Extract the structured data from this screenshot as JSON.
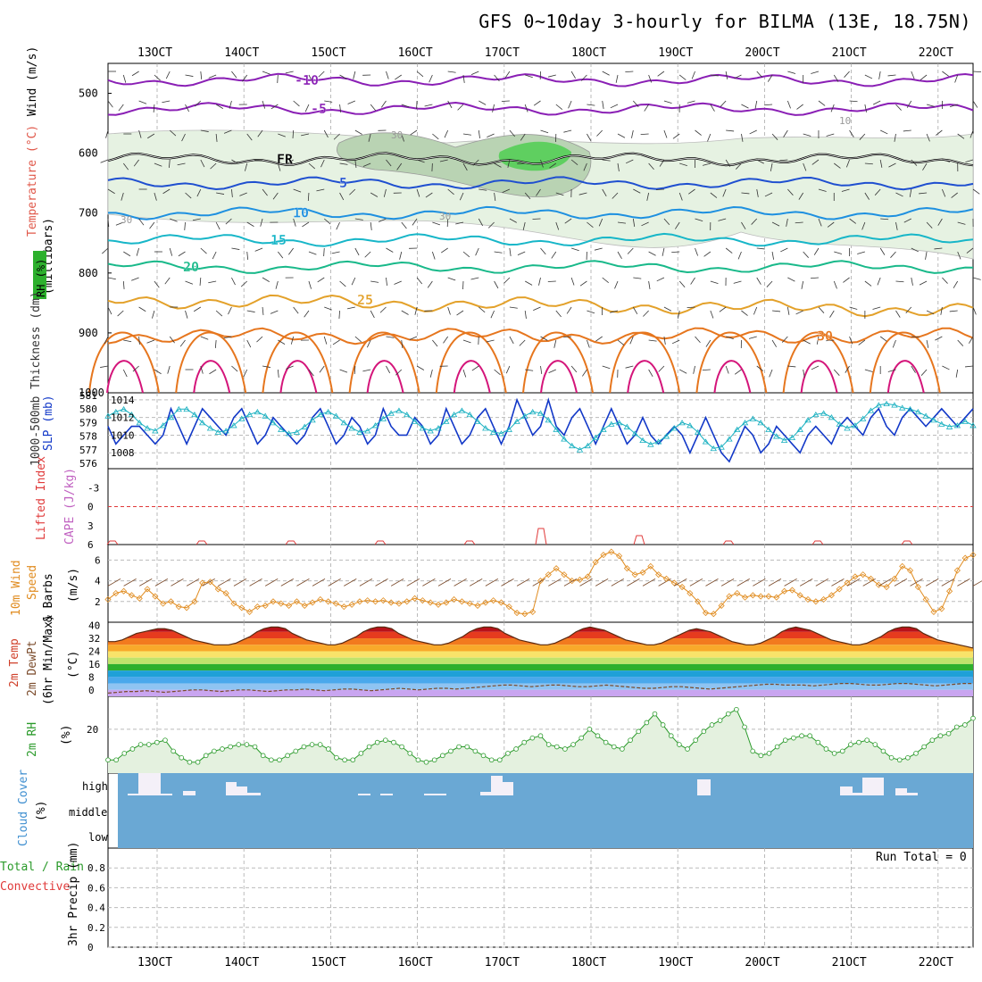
{
  "title": "GFS 0~10day 3-hourly for BILMA (13E, 18.75N)",
  "colors": {
    "t_neg10": "#8a1fb5",
    "t_neg5": "#8a1fb5",
    "t_fr": "#000000",
    "t_5": "#1f4fd0",
    "t_10": "#1e90e0",
    "t_15": "#17b6c8",
    "t_20": "#19b98a",
    "t_25": "#e3a12a",
    "t_30": "#e6761e",
    "t_35": "#d4157a",
    "slp": "#1238c8",
    "thickness": "#19b0c0",
    "li": "#e03a3a",
    "wind": "#e08b1e",
    "rh2m": "#2a9a2a",
    "cloud": "#6aa8d4",
    "dewpt": "#c9a5f0"
  },
  "chart_data": [
    {
      "type": "line",
      "panel": "upper-air",
      "x_ticks": [
        "13OCT",
        "14OCT",
        "15OCT",
        "16OCT",
        "17OCT",
        "18OCT",
        "19OCT",
        "20OCT",
        "21OCT",
        "22OCT"
      ],
      "ylabel_parts": [
        "Wind (m/s)",
        "Temperature (°C)",
        "RH (%)",
        "(millibars)"
      ],
      "y_ticks": [
        500,
        600,
        700,
        800,
        900,
        1000
      ],
      "ylim": [
        450,
        1000
      ],
      "contours": [
        {
          "name": "-10",
          "level_mb": 478
        },
        {
          "name": "-5",
          "level_mb": 526
        },
        {
          "name": "FR",
          "level_mb": 610
        },
        {
          "name": "5",
          "level_mb": 650
        },
        {
          "name": "10",
          "level_mb": 700
        },
        {
          "name": "15",
          "level_mb": 745
        },
        {
          "name": "20",
          "level_mb": 790
        },
        {
          "name": "25",
          "level_mb": 845
        },
        {
          "name": "30",
          "level_mb": 905
        }
      ],
      "rh_labels": [
        "30",
        "30",
        "30",
        "10"
      ]
    },
    {
      "type": "line",
      "panel": "slp-thickness",
      "ylabel_left": "1000-500mb Thickness (dm)",
      "ylabel_right": "SLP (mb)",
      "y_ticks_thickness": [
        576,
        577,
        578,
        579,
        580,
        581
      ],
      "y_ticks_slp": [
        1008,
        1010,
        1012,
        1014
      ],
      "series": [
        {
          "name": "SLP",
          "values": [
            1011,
            1009,
            1010,
            1011,
            1011,
            1010,
            1009,
            1010,
            1013,
            1011,
            1009,
            1011,
            1013,
            1012,
            1011,
            1010,
            1012,
            1013,
            1011,
            1009,
            1010,
            1012,
            1011,
            1010,
            1009,
            1010,
            1012,
            1013,
            1011,
            1009,
            1010,
            1012,
            1011,
            1009,
            1010,
            1013,
            1011,
            1010,
            1010,
            1012,
            1011,
            1009,
            1010,
            1013,
            1011,
            1009,
            1010,
            1012,
            1013,
            1011,
            1009,
            1011,
            1014,
            1012,
            1010,
            1011,
            1014,
            1011,
            1010,
            1012,
            1013,
            1011,
            1009,
            1011,
            1013,
            1011,
            1009,
            1010,
            1012,
            1010,
            1009,
            1010,
            1011,
            1010,
            1008,
            1010,
            1012,
            1010,
            1008,
            1007,
            1009,
            1011,
            1010,
            1008,
            1009,
            1011,
            1010,
            1009,
            1008,
            1010,
            1011,
            1010,
            1009,
            1011,
            1012,
            1011,
            1010,
            1012,
            1013,
            1011,
            1010,
            1012,
            1013,
            1012,
            1011,
            1012,
            1013,
            1012,
            1011,
            1012,
            1013
          ]
        },
        {
          "name": "Thickness",
          "values": [
            579.5,
            579.8,
            580.0,
            579.6,
            579.0,
            578.6,
            578.4,
            578.8,
            579.4,
            580.0,
            580.0,
            579.6,
            579.0,
            578.6,
            578.3,
            578.4,
            578.8,
            579.3,
            579.6,
            579.8,
            579.5,
            579.0,
            578.5,
            578.2,
            578.3,
            578.7,
            579.2,
            579.6,
            579.8,
            579.5,
            579.0,
            578.6,
            578.3,
            578.4,
            578.8,
            579.3,
            579.7,
            579.9,
            579.6,
            579.1,
            578.6,
            578.4,
            578.6,
            579.1,
            579.6,
            579.9,
            579.6,
            579.1,
            578.6,
            578.3,
            578.2,
            578.5,
            579.1,
            579.5,
            579.8,
            579.7,
            579.2,
            578.5,
            577.8,
            577.3,
            577.0,
            577.3,
            577.9,
            578.5,
            578.9,
            579.0,
            578.7,
            578.2,
            577.7,
            577.4,
            577.6,
            578.0,
            578.6,
            579.0,
            578.8,
            578.3,
            577.6,
            577.1,
            577.2,
            577.8,
            578.5,
            579.0,
            579.3,
            579.0,
            578.5,
            578.0,
            577.7,
            577.9,
            578.5,
            579.2,
            579.6,
            579.7,
            579.4,
            578.9,
            578.6,
            578.8,
            579.3,
            579.9,
            580.3,
            580.4,
            580.3,
            580.1,
            580.0,
            579.8,
            579.5,
            579.2,
            578.9,
            578.7,
            578.8,
            579.1,
            578.8
          ]
        }
      ]
    },
    {
      "type": "line",
      "panel": "instability",
      "ylabel_left": "Lifted Index",
      "ylabel_right": "CAPE (J/kg)",
      "y_ticks": [
        -3,
        0,
        3,
        6
      ],
      "ylim": [
        -6,
        6
      ]
    },
    {
      "type": "line",
      "panel": "wind10m",
      "ylabel": "10m Wind Speed & Barbs (m/s)",
      "y_ticks": [
        2,
        4,
        6
      ],
      "ylim": [
        0,
        7.5
      ],
      "series": [
        {
          "name": "Speed",
          "values": [
            2.2,
            2.8,
            3.0,
            2.6,
            2.3,
            3.2,
            2.5,
            1.8,
            2.0,
            1.5,
            1.4,
            2.0,
            3.8,
            3.9,
            3.2,
            2.8,
            1.8,
            1.4,
            1.0,
            1.5,
            1.6,
            2.0,
            1.8,
            1.6,
            2.0,
            1.6,
            1.9,
            2.2,
            2.0,
            1.8,
            1.5,
            1.7,
            2.0,
            2.1,
            2.0,
            2.1,
            1.9,
            1.8,
            2.0,
            2.3,
            2.1,
            1.9,
            1.7,
            1.9,
            2.2,
            2.0,
            1.8,
            1.6,
            1.9,
            2.1,
            1.9,
            1.5,
            0.9,
            0.8,
            1.0,
            4.0,
            4.6,
            5.2,
            4.6,
            4.0,
            4.1,
            4.4,
            5.8,
            6.5,
            6.8,
            6.4,
            5.2,
            4.6,
            4.8,
            5.4,
            4.6,
            4.2,
            3.8,
            3.4,
            2.8,
            2.0,
            0.9,
            0.8,
            1.6,
            2.5,
            2.8,
            2.4,
            2.6,
            2.5,
            2.5,
            2.4,
            3.0,
            3.1,
            2.6,
            2.2,
            2.0,
            2.2,
            2.6,
            3.2,
            3.8,
            4.4,
            4.6,
            4.2,
            3.6,
            3.4,
            4.2,
            5.4,
            5.0,
            3.4,
            2.2,
            1.0,
            1.3,
            3.0,
            5.0,
            6.2,
            6.5
          ]
        }
      ]
    },
    {
      "type": "area",
      "panel": "temperature2m",
      "ylabel": "2m Temp 2m DewPt (6hr Min/Max) (°C)",
      "y_ticks": [
        0,
        8,
        16,
        24,
        32,
        40
      ],
      "ylim": [
        -4,
        42
      ],
      "series": [
        {
          "name": "2m Temp",
          "values": [
            30,
            30,
            31,
            33,
            35,
            36,
            37,
            38,
            38,
            37,
            35,
            33,
            31,
            30,
            29,
            28,
            28,
            28,
            29,
            31,
            33,
            36,
            38,
            39,
            39,
            38,
            35,
            33,
            31,
            30,
            29,
            28,
            28,
            29,
            31,
            33,
            36,
            38,
            39,
            39,
            38,
            35,
            33,
            31,
            30,
            29,
            28,
            28,
            29,
            31,
            33,
            36,
            38,
            39,
            39,
            38,
            35,
            33,
            31,
            30,
            29,
            28,
            28,
            29,
            31,
            33,
            36,
            38,
            39,
            38,
            37,
            35,
            33,
            31,
            30,
            29,
            28,
            28,
            29,
            31,
            33,
            35,
            37,
            38,
            37,
            36,
            34,
            32,
            30,
            29,
            28,
            28,
            29,
            31,
            33,
            36,
            38,
            39,
            38,
            37,
            35,
            33,
            31,
            30,
            29,
            28,
            28,
            29,
            31,
            33,
            36,
            38,
            39,
            39,
            38,
            35,
            33,
            31,
            30,
            29,
            28,
            27,
            26
          ]
        },
        {
          "name": "2m DewPt",
          "values": [
            -2,
            -1.5,
            -1,
            -1,
            -0.5,
            -1,
            -1.5,
            -1,
            -0.5,
            0,
            0,
            -0.5,
            -1,
            -0.5,
            0,
            0,
            -0.5,
            -1,
            -0.5,
            0,
            0,
            0.5,
            0,
            -0.5,
            0,
            0.5,
            0.5,
            0,
            -0.5,
            0,
            0.5,
            1,
            0.5,
            0,
            0.5,
            1,
            1,
            0.5,
            1,
            1.5,
            2,
            2.5,
            3,
            3,
            2.5,
            2,
            2.5,
            3,
            3,
            2.5,
            2,
            2,
            2.5,
            3,
            2.5,
            2,
            1.5,
            1,
            1,
            1.5,
            2,
            2,
            1.5,
            1,
            0.5,
            1,
            1.5,
            2,
            2.5,
            3,
            3.5,
            3.5,
            3,
            3,
            3,
            2.5,
            3,
            3.5,
            4,
            4,
            3.5,
            3,
            3,
            3.5,
            4,
            4,
            3.5,
            3,
            2.5,
            3,
            3.5,
            4,
            4
          ]
        }
      ]
    },
    {
      "type": "area",
      "panel": "rh2m",
      "ylabel": "2m RH (%)",
      "y_ticks": [
        20
      ],
      "ylim": [
        0,
        35
      ],
      "series": [
        {
          "name": "2m RH",
          "values": [
            6,
            6,
            9,
            11,
            13,
            13,
            14,
            15,
            10,
            7,
            5,
            5,
            8,
            10,
            11,
            12,
            13,
            13,
            12,
            8,
            6,
            6,
            8,
            10,
            12,
            13,
            13,
            11,
            7,
            6,
            6,
            9,
            12,
            14,
            15,
            14,
            12,
            9,
            6,
            5,
            6,
            8,
            10,
            12,
            12,
            10,
            8,
            6,
            6,
            9,
            11,
            14,
            16,
            17,
            13,
            12,
            11,
            13,
            16,
            20,
            17,
            14,
            12,
            11,
            15,
            19,
            23,
            27,
            22,
            17,
            13,
            11,
            15,
            19,
            22,
            24,
            27,
            29,
            21,
            10,
            8,
            9,
            12,
            15,
            16,
            17,
            17,
            14,
            11,
            9,
            10,
            13,
            14,
            15,
            13,
            10,
            7,
            6,
            7,
            9,
            12,
            15,
            17,
            18,
            21,
            22,
            25
          ]
        }
      ]
    },
    {
      "type": "bar",
      "panel": "cloud",
      "ylabel": "Cloud Cover (%)",
      "y_labels": [
        "high",
        "middle",
        "low"
      ]
    },
    {
      "type": "bar",
      "panel": "precip",
      "ylabel_parts": [
        "Total / Rain",
        "Convective",
        "3hr Precip (mm)"
      ],
      "y_ticks": [
        0,
        0.2,
        0.4,
        0.6,
        0.8
      ],
      "ylim": [
        0,
        1.0
      ],
      "run_total": "Run Total = 0",
      "x_ticks": [
        "13OCT",
        "14OCT",
        "15OCT",
        "16OCT",
        "17OCT",
        "18OCT",
        "19OCT",
        "20OCT",
        "21OCT",
        "22OCT"
      ]
    }
  ]
}
